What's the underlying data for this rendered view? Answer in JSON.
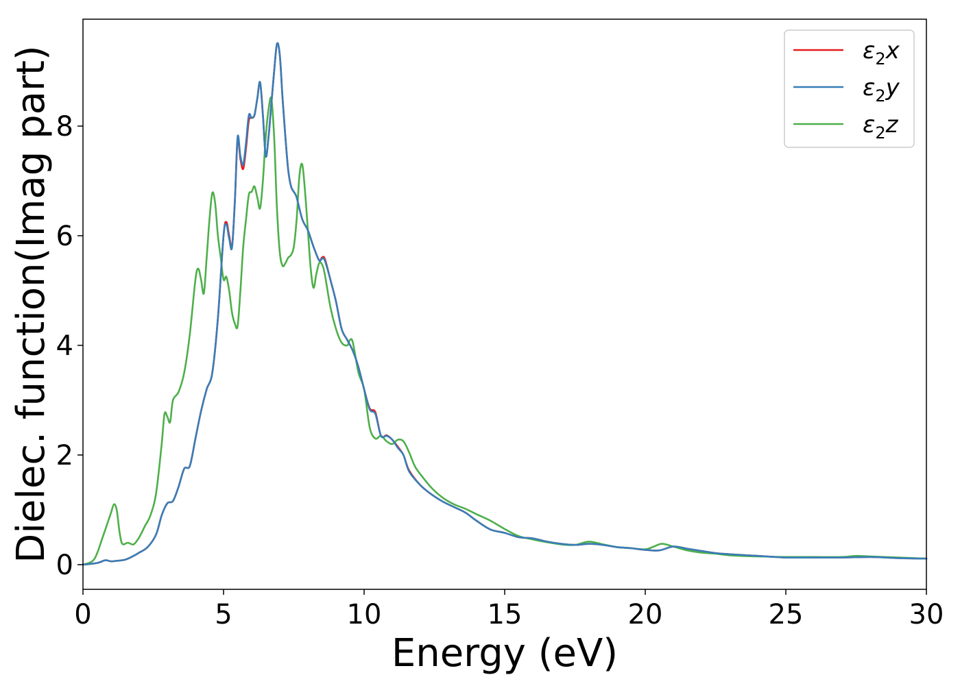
{
  "chart_data": {
    "type": "line",
    "title": "",
    "xlabel": "Energy (eV)",
    "ylabel": "Dielec. function(Imag part)",
    "xlim": [
      0,
      30
    ],
    "ylim": [
      -0.45,
      9.95
    ],
    "xticks": [
      0,
      5,
      10,
      15,
      20,
      25,
      30
    ],
    "yticks": [
      0,
      2,
      4,
      6,
      8
    ],
    "grid": false,
    "legend_position": "top-right",
    "series": [
      {
        "name": "ε₂x",
        "legend": {
          "base": "ε",
          "sub": "2",
          "suffix": "x"
        },
        "color": "#e41a1c",
        "x": [
          0,
          0.5,
          0.8,
          1.0,
          1.2,
          1.5,
          1.8,
          2.0,
          2.3,
          2.6,
          2.8,
          3.0,
          3.2,
          3.4,
          3.6,
          3.8,
          4.0,
          4.2,
          4.4,
          4.6,
          4.8,
          5.0,
          5.1,
          5.2,
          5.3,
          5.4,
          5.5,
          5.6,
          5.7,
          5.8,
          5.9,
          6.0,
          6.1,
          6.2,
          6.3,
          6.4,
          6.5,
          6.6,
          6.7,
          6.8,
          6.9,
          7.0,
          7.1,
          7.2,
          7.3,
          7.4,
          7.5,
          7.6,
          7.8,
          8.0,
          8.2,
          8.4,
          8.5,
          8.6,
          8.8,
          9.0,
          9.2,
          9.4,
          9.6,
          9.8,
          10.0,
          10.2,
          10.4,
          10.6,
          10.8,
          11.0,
          11.2,
          11.4,
          11.6,
          12.0,
          12.4,
          12.8,
          13.2,
          13.6,
          14.0,
          14.5,
          15.0,
          15.5,
          16.0,
          16.5,
          17.0,
          17.5,
          18.0,
          18.5,
          19.0,
          19.5,
          20.0,
          20.5,
          21.0,
          21.5,
          22.0,
          22.5,
          23.0,
          24.0,
          25.0,
          26.0,
          27.0,
          28.0,
          29.0,
          30.0
        ],
        "y": [
          0.0,
          0.03,
          0.08,
          0.06,
          0.07,
          0.09,
          0.16,
          0.22,
          0.32,
          0.55,
          0.9,
          1.12,
          1.16,
          1.42,
          1.75,
          1.8,
          2.3,
          2.8,
          3.2,
          3.5,
          4.5,
          6.0,
          6.25,
          6.0,
          5.8,
          6.6,
          7.75,
          7.4,
          7.22,
          7.6,
          8.1,
          8.15,
          8.2,
          8.5,
          8.8,
          8.2,
          7.45,
          7.8,
          8.4,
          9.0,
          9.5,
          9.3,
          8.5,
          7.8,
          7.2,
          6.9,
          6.8,
          6.7,
          6.3,
          6.1,
          5.8,
          5.55,
          5.6,
          5.58,
          5.2,
          4.8,
          4.3,
          4.1,
          3.9,
          3.6,
          3.2,
          2.85,
          2.78,
          2.35,
          2.36,
          2.28,
          2.15,
          2.0,
          1.72,
          1.45,
          1.28,
          1.15,
          1.05,
          0.95,
          0.8,
          0.64,
          0.58,
          0.5,
          0.48,
          0.42,
          0.38,
          0.36,
          0.38,
          0.36,
          0.32,
          0.3,
          0.27,
          0.26,
          0.33,
          0.29,
          0.25,
          0.21,
          0.19,
          0.16,
          0.13,
          0.13,
          0.13,
          0.14,
          0.12,
          0.11
        ]
      },
      {
        "name": "ε₂y",
        "legend": {
          "base": "ε",
          "sub": "2",
          "suffix": "y"
        },
        "color": "#377eb8",
        "x": [
          0,
          0.5,
          0.8,
          1.0,
          1.2,
          1.5,
          1.8,
          2.0,
          2.3,
          2.6,
          2.8,
          3.0,
          3.2,
          3.4,
          3.6,
          3.8,
          4.0,
          4.2,
          4.4,
          4.6,
          4.8,
          5.0,
          5.1,
          5.2,
          5.3,
          5.4,
          5.5,
          5.6,
          5.7,
          5.8,
          5.9,
          6.0,
          6.1,
          6.2,
          6.3,
          6.4,
          6.5,
          6.6,
          6.7,
          6.8,
          6.9,
          7.0,
          7.1,
          7.2,
          7.3,
          7.4,
          7.5,
          7.6,
          7.8,
          8.0,
          8.2,
          8.4,
          8.5,
          8.6,
          8.8,
          9.0,
          9.2,
          9.4,
          9.6,
          9.8,
          10.0,
          10.2,
          10.4,
          10.6,
          10.8,
          11.0,
          11.2,
          11.4,
          11.6,
          12.0,
          12.4,
          12.8,
          13.2,
          13.6,
          14.0,
          14.5,
          15.0,
          15.5,
          16.0,
          16.5,
          17.0,
          17.5,
          18.0,
          18.5,
          19.0,
          19.5,
          20.0,
          20.5,
          21.0,
          21.5,
          22.0,
          22.5,
          23.0,
          24.0,
          25.0,
          26.0,
          27.0,
          28.0,
          29.0,
          30.0
        ],
        "y": [
          0.0,
          0.03,
          0.08,
          0.06,
          0.07,
          0.09,
          0.16,
          0.22,
          0.32,
          0.55,
          0.9,
          1.12,
          1.16,
          1.42,
          1.75,
          1.8,
          2.3,
          2.8,
          3.2,
          3.5,
          4.5,
          6.0,
          6.2,
          5.95,
          5.78,
          6.6,
          7.8,
          7.45,
          7.3,
          7.7,
          8.2,
          8.15,
          8.2,
          8.5,
          8.8,
          8.2,
          7.45,
          7.8,
          8.4,
          9.0,
          9.5,
          9.3,
          8.5,
          7.8,
          7.2,
          6.9,
          6.8,
          6.7,
          6.3,
          6.1,
          5.8,
          5.55,
          5.58,
          5.55,
          5.2,
          4.8,
          4.3,
          4.1,
          3.9,
          3.6,
          3.2,
          2.83,
          2.75,
          2.35,
          2.35,
          2.28,
          2.13,
          2.0,
          1.7,
          1.45,
          1.28,
          1.15,
          1.05,
          0.95,
          0.8,
          0.64,
          0.58,
          0.5,
          0.48,
          0.42,
          0.38,
          0.36,
          0.38,
          0.36,
          0.32,
          0.3,
          0.27,
          0.26,
          0.33,
          0.29,
          0.25,
          0.21,
          0.19,
          0.16,
          0.13,
          0.13,
          0.13,
          0.14,
          0.12,
          0.11
        ]
      },
      {
        "name": "ε₂z",
        "legend": {
          "base": "ε",
          "sub": "2",
          "suffix": "z"
        },
        "color": "#4daf4a",
        "x": [
          0,
          0.4,
          0.7,
          0.9,
          1.0,
          1.1,
          1.2,
          1.3,
          1.4,
          1.6,
          1.8,
          2.0,
          2.2,
          2.4,
          2.6,
          2.8,
          2.9,
          3.0,
          3.1,
          3.2,
          3.4,
          3.6,
          3.8,
          4.0,
          4.1,
          4.2,
          4.3,
          4.4,
          4.5,
          4.6,
          4.7,
          4.8,
          4.9,
          5.0,
          5.1,
          5.2,
          5.3,
          5.4,
          5.5,
          5.6,
          5.7,
          5.8,
          5.9,
          6.0,
          6.1,
          6.2,
          6.3,
          6.4,
          6.5,
          6.6,
          6.7,
          6.8,
          6.9,
          7.0,
          7.1,
          7.2,
          7.3,
          7.4,
          7.5,
          7.6,
          7.7,
          7.8,
          7.9,
          8.0,
          8.1,
          8.2,
          8.3,
          8.4,
          8.5,
          8.6,
          8.8,
          9.0,
          9.2,
          9.4,
          9.5,
          9.6,
          9.8,
          10.0,
          10.2,
          10.4,
          10.6,
          10.8,
          11.0,
          11.2,
          11.4,
          11.6,
          11.8,
          12.0,
          12.4,
          12.8,
          13.2,
          13.6,
          14.0,
          14.5,
          15.0,
          15.5,
          16.0,
          16.5,
          17.0,
          17.5,
          18.0,
          18.5,
          19.0,
          19.5,
          20.0,
          20.3,
          20.6,
          21.0,
          21.5,
          22.0,
          22.5,
          23.0,
          24.0,
          25.0,
          26.0,
          27.0,
          27.5,
          28.0,
          29.0,
          30.0
        ],
        "y": [
          0.0,
          0.1,
          0.5,
          0.8,
          0.95,
          1.1,
          1.0,
          0.6,
          0.38,
          0.4,
          0.37,
          0.5,
          0.7,
          0.9,
          1.3,
          2.2,
          2.75,
          2.7,
          2.6,
          3.0,
          3.15,
          3.5,
          4.2,
          5.2,
          5.4,
          5.2,
          4.95,
          5.6,
          6.3,
          6.78,
          6.6,
          6.0,
          5.6,
          5.2,
          5.25,
          5.0,
          4.6,
          4.4,
          4.35,
          5.0,
          5.8,
          6.3,
          6.75,
          6.8,
          6.9,
          6.7,
          6.5,
          7.0,
          7.8,
          8.3,
          8.5,
          7.8,
          6.5,
          5.7,
          5.45,
          5.5,
          5.6,
          5.65,
          5.8,
          6.3,
          7.1,
          7.3,
          6.8,
          6.1,
          5.4,
          5.05,
          5.3,
          5.5,
          5.48,
          5.3,
          4.7,
          4.3,
          4.05,
          4.0,
          4.1,
          4.05,
          3.5,
          3.2,
          2.5,
          2.3,
          2.35,
          2.25,
          2.2,
          2.28,
          2.25,
          2.05,
          1.8,
          1.65,
          1.4,
          1.22,
          1.1,
          1.02,
          0.92,
          0.8,
          0.65,
          0.52,
          0.46,
          0.41,
          0.37,
          0.36,
          0.42,
          0.37,
          0.32,
          0.3,
          0.28,
          0.33,
          0.38,
          0.33,
          0.26,
          0.22,
          0.2,
          0.17,
          0.15,
          0.14,
          0.14,
          0.14,
          0.16,
          0.15,
          0.13,
          0.11
        ]
      }
    ]
  }
}
